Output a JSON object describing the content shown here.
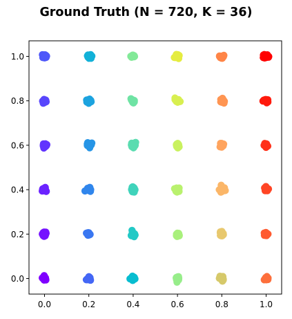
{
  "chart_data": {
    "type": "scatter",
    "title": "Ground Truth (N = 720, K = 36)",
    "xlabel": "",
    "ylabel": "",
    "xlim": [
      -0.07,
      1.07
    ],
    "ylim": [
      -0.07,
      1.07
    ],
    "xticks": [
      0.0,
      0.2,
      0.4,
      0.6,
      0.8,
      1.0
    ],
    "yticks": [
      0.0,
      0.2,
      0.4,
      0.6,
      0.8,
      1.0
    ],
    "xtick_labels": [
      "0.0",
      "0.2",
      "0.4",
      "0.6",
      "0.8",
      "1.0"
    ],
    "ytick_labels": [
      "0.0",
      "0.2",
      "0.4",
      "0.6",
      "0.8",
      "1.0"
    ],
    "grid": false,
    "legend": "none",
    "points_per_cluster": 20,
    "colormap": "rainbow",
    "clusters": [
      {
        "x": 0.0,
        "y": 0.0,
        "color": "#7f00ff"
      },
      {
        "x": 0.0,
        "y": 0.2,
        "color": "#7512ff"
      },
      {
        "x": 0.0,
        "y": 0.4,
        "color": "#6b23ff"
      },
      {
        "x": 0.0,
        "y": 0.6,
        "color": "#6235fe"
      },
      {
        "x": 0.0,
        "y": 0.8,
        "color": "#5846fc"
      },
      {
        "x": 0.0,
        "y": 1.0,
        "color": "#4e57f9"
      },
      {
        "x": 0.2,
        "y": 0.0,
        "color": "#4467f5"
      },
      {
        "x": 0.2,
        "y": 0.2,
        "color": "#3a77f1"
      },
      {
        "x": 0.2,
        "y": 0.4,
        "color": "#3086ec"
      },
      {
        "x": 0.2,
        "y": 0.6,
        "color": "#2695e6"
      },
      {
        "x": 0.2,
        "y": 0.8,
        "color": "#1ca3df"
      },
      {
        "x": 0.2,
        "y": 1.0,
        "color": "#12b1d8"
      },
      {
        "x": 0.4,
        "y": 0.0,
        "color": "#08bdd0"
      },
      {
        "x": 0.4,
        "y": 0.2,
        "color": "#23c9c6"
      },
      {
        "x": 0.4,
        "y": 0.4,
        "color": "#40d3bb"
      },
      {
        "x": 0.4,
        "y": 0.6,
        "color": "#5adcb0"
      },
      {
        "x": 0.4,
        "y": 0.8,
        "color": "#6fe3a4"
      },
      {
        "x": 0.4,
        "y": 1.0,
        "color": "#82e998"
      },
      {
        "x": 0.6,
        "y": 0.0,
        "color": "#97ed8a"
      },
      {
        "x": 0.6,
        "y": 0.2,
        "color": "#a9f07c"
      },
      {
        "x": 0.6,
        "y": 0.4,
        "color": "#b9f16e"
      },
      {
        "x": 0.6,
        "y": 0.6,
        "color": "#c9f15f"
      },
      {
        "x": 0.6,
        "y": 0.8,
        "color": "#d8ef50"
      },
      {
        "x": 0.6,
        "y": 1.0,
        "color": "#e5ec40"
      },
      {
        "x": 0.8,
        "y": 0.0,
        "color": "#d6c96a"
      },
      {
        "x": 0.8,
        "y": 0.2,
        "color": "#e8c86e"
      },
      {
        "x": 0.8,
        "y": 0.4,
        "color": "#fbb668"
      },
      {
        "x": 0.8,
        "y": 0.6,
        "color": "#ffa45e"
      },
      {
        "x": 0.8,
        "y": 0.8,
        "color": "#ff9552"
      },
      {
        "x": 0.8,
        "y": 1.0,
        "color": "#ff8547"
      },
      {
        "x": 1.0,
        "y": 0.0,
        "color": "#fd6f3c"
      },
      {
        "x": 1.0,
        "y": 0.2,
        "color": "#ff5a30"
      },
      {
        "x": 1.0,
        "y": 0.4,
        "color": "#ff4525"
      },
      {
        "x": 1.0,
        "y": 0.6,
        "color": "#ff3019"
      },
      {
        "x": 1.0,
        "y": 0.8,
        "color": "#ff1a0d"
      },
      {
        "x": 1.0,
        "y": 1.0,
        "color": "#ff0000"
      }
    ]
  }
}
